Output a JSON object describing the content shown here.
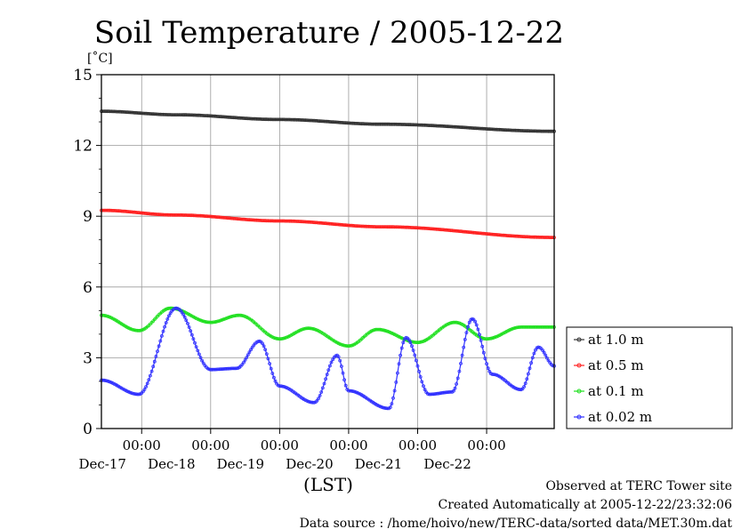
{
  "chart_data": {
    "type": "line",
    "title": "Soil Temperature / 2005-12-22",
    "ylabel": "[˚C]",
    "xlabel": "(LST)",
    "ylim": [
      0,
      15
    ],
    "yticks": [
      0,
      3,
      6,
      9,
      12,
      15
    ],
    "xlim": [
      "2005-12-16 10:00",
      "2005-12-22 23:30"
    ],
    "x_time_ticks": [
      {
        "time": "2005-12-17 00:00",
        "label": "00:00",
        "day_label": "Dec-17"
      },
      {
        "time": "2005-12-18 00:00",
        "label": "00:00",
        "day_label": "Dec-18"
      },
      {
        "time": "2005-12-19 00:00",
        "label": "00:00",
        "day_label": "Dec-19"
      },
      {
        "time": "2005-12-20 00:00",
        "label": "00:00",
        "day_label": "Dec-20"
      },
      {
        "time": "2005-12-21 00:00",
        "label": "00:00",
        "day_label": "Dec-21"
      },
      {
        "time": "2005-12-22 00:00",
        "label": "00:00",
        "day_label": "Dec-22"
      }
    ],
    "grid": true,
    "legend_position": "right",
    "series": [
      {
        "name": "at 1.0 m",
        "color": "#333333",
        "points": [
          [
            "2005-12-16 10:00",
            13.45
          ],
          [
            "2005-12-17 12:00",
            13.3
          ],
          [
            "2005-12-19 00:00",
            13.1
          ],
          [
            "2005-12-20 12:00",
            12.9
          ],
          [
            "2005-12-22 23:30",
            12.6
          ]
        ]
      },
      {
        "name": "at 0.5 m",
        "color": "#ff2020",
        "points": [
          [
            "2005-12-16 10:00",
            9.25
          ],
          [
            "2005-12-17 12:00",
            9.05
          ],
          [
            "2005-12-19 00:00",
            8.8
          ],
          [
            "2005-12-20 12:00",
            8.55
          ],
          [
            "2005-12-22 23:30",
            8.1
          ]
        ]
      },
      {
        "name": "at 0.1 m",
        "color": "#20e020",
        "points": [
          [
            "2005-12-16 10:00",
            4.8
          ],
          [
            "2005-12-16 23:00",
            4.15
          ],
          [
            "2005-12-17 10:00",
            5.1
          ],
          [
            "2005-12-18 00:00",
            4.5
          ],
          [
            "2005-12-18 10:00",
            4.8
          ],
          [
            "2005-12-19 00:00",
            3.8
          ],
          [
            "2005-12-19 10:00",
            4.25
          ],
          [
            "2005-12-20 00:00",
            3.5
          ],
          [
            "2005-12-20 10:00",
            4.2
          ],
          [
            "2005-12-21 00:00",
            3.65
          ],
          [
            "2005-12-21 13:00",
            4.5
          ],
          [
            "2005-12-22 00:00",
            3.8
          ],
          [
            "2005-12-22 12:00",
            4.3
          ],
          [
            "2005-12-22 23:30",
            4.3
          ]
        ]
      },
      {
        "name": "at 0.02 m",
        "color": "#3030ff",
        "points": [
          [
            "2005-12-16 10:00",
            2.05
          ],
          [
            "2005-12-16 23:00",
            1.45
          ],
          [
            "2005-12-17 12:00",
            5.1
          ],
          [
            "2005-12-18 00:00",
            2.5
          ],
          [
            "2005-12-18 09:00",
            2.55
          ],
          [
            "2005-12-18 17:00",
            3.7
          ],
          [
            "2005-12-19 00:00",
            1.8
          ],
          [
            "2005-12-19 12:00",
            1.1
          ],
          [
            "2005-12-19 20:00",
            3.1
          ],
          [
            "2005-12-20 00:00",
            1.6
          ],
          [
            "2005-12-20 14:00",
            0.85
          ],
          [
            "2005-12-20 20:00",
            3.85
          ],
          [
            "2005-12-21 04:00",
            1.45
          ],
          [
            "2005-12-21 12:00",
            1.55
          ],
          [
            "2005-12-21 19:00",
            4.65
          ],
          [
            "2005-12-22 02:00",
            2.3
          ],
          [
            "2005-12-22 12:00",
            1.65
          ],
          [
            "2005-12-22 18:00",
            3.45
          ],
          [
            "2005-12-22 23:30",
            2.65
          ]
        ]
      }
    ]
  },
  "footer": {
    "line1": "Observed at TERC Tower site",
    "line2": "Created Automatically at 2005-12-22/23:32:06",
    "line3": "Data source : /home/hoivo/new/TERC-data/sorted  data/MET.30m.dat"
  }
}
